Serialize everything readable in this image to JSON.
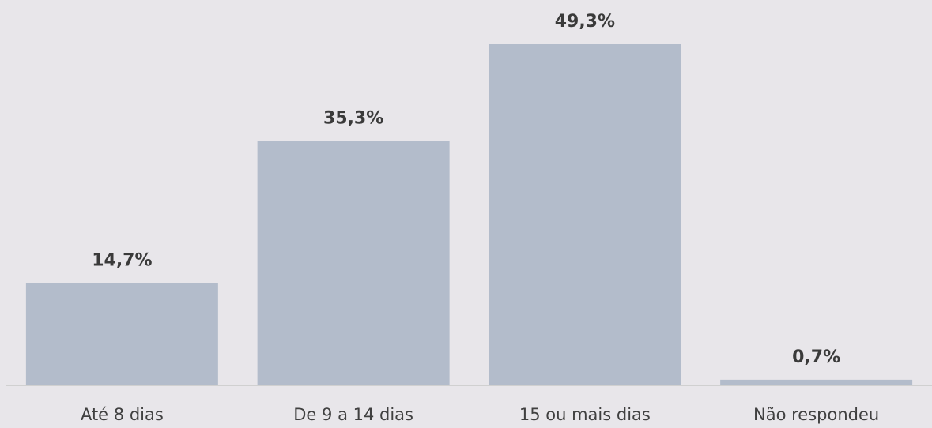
{
  "chart_data": {
    "type": "bar",
    "categories": [
      "Até 8 dias",
      "De 9 a 14 dias",
      "15 ou mais dias",
      "Não respondeu"
    ],
    "values": [
      14.7,
      35.3,
      49.3,
      0.7
    ],
    "value_labels": [
      "14,7%",
      "35,3%",
      "49,3%",
      "0,7%"
    ],
    "color": "#b3bccb"
  }
}
